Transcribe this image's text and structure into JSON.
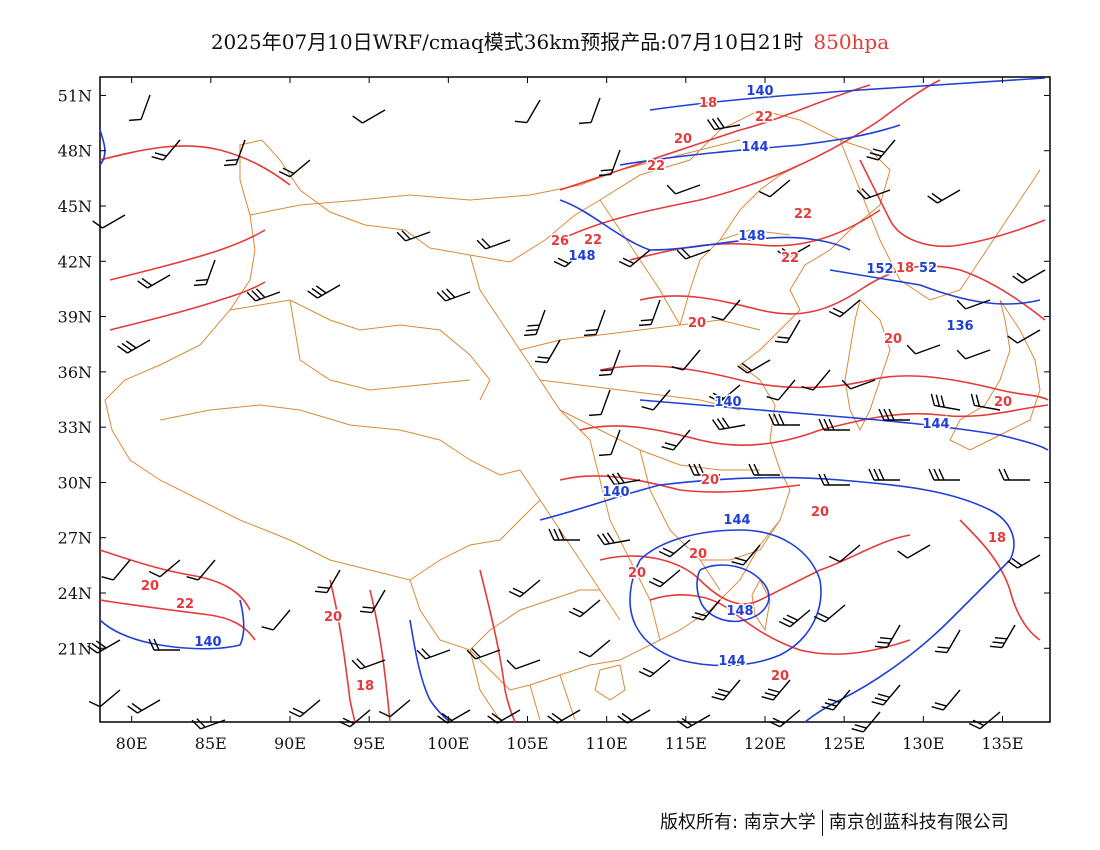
{
  "title": {
    "main": "2025年07月10日WRF/cmaq模式36km预报产品:07月10日21时",
    "level": "850hpa",
    "level_color": "#e63a3a"
  },
  "map": {
    "lon_range": [
      78,
      138
    ],
    "lat_range": [
      17,
      52
    ],
    "x_ticks": [
      "80E",
      "85E",
      "90E",
      "95E",
      "100E",
      "105E",
      "110E",
      "115E",
      "120E",
      "125E",
      "130E",
      "135E"
    ],
    "y_ticks": [
      "51N",
      "48N",
      "45N",
      "42N",
      "39N",
      "36N",
      "33N",
      "30N",
      "27N",
      "24N",
      "21N"
    ],
    "height_label_color": "#1f3fd6",
    "temperature_label_color": "#e63a3a",
    "boundary_color": "#d98a3a",
    "wind_barb_color": "#000000",
    "height_labels": [
      "140",
      "144",
      "148",
      "152",
      "52",
      "136",
      "144",
      "148",
      "144",
      "140",
      "144",
      "140",
      "148",
      "140"
    ],
    "temperature_labels": [
      "18",
      "20",
      "22",
      "22",
      "22",
      "22",
      "20",
      "20",
      "20",
      "20",
      "20",
      "20",
      "22",
      "20",
      "18",
      "20",
      "18",
      "18",
      "20",
      "20",
      "22",
      "26"
    ]
  },
  "footer": {
    "left": "版权所有: 南京大学",
    "right": "南京创蓝科技有限公司"
  }
}
